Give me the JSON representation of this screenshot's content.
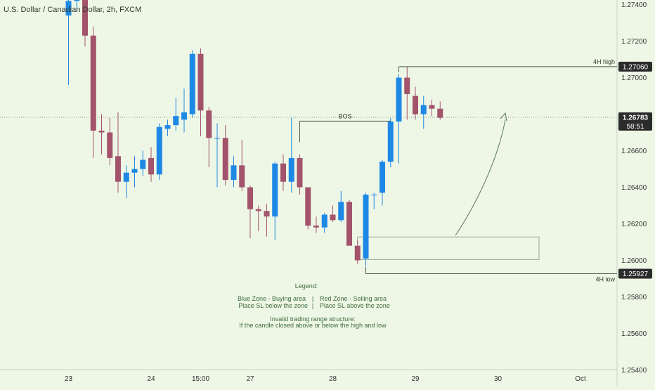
{
  "chart_title": "U.S. Dollar / Canadian Dollar, 2h, FXCM",
  "colors": {
    "background": "#eef7e6",
    "up": "#1e88e5",
    "down": "#a3536b",
    "axis_text": "#333333",
    "line": "#4a5a4a",
    "price_badge": "#2b2b2b",
    "legend_text": "#3e6b3e"
  },
  "chart_data": {
    "type": "candlestick",
    "symbol": "USDCAD",
    "timeframe": "2h",
    "ylim": [
      1.253,
      1.2748
    ],
    "y_ticks": [
      "1.27400",
      "1.27200",
      "1.27000",
      "1.26600",
      "1.26400",
      "1.26200",
      "1.26000",
      "1.25800",
      "1.25600",
      "1.25400"
    ],
    "x_ticks": [
      {
        "label": "23",
        "bar": 0
      },
      {
        "label": "24",
        "bar": 10
      },
      {
        "label": "15:00",
        "bar": 16
      },
      {
        "label": "27",
        "bar": 22
      },
      {
        "label": "28",
        "bar": 32
      },
      {
        "label": "29",
        "bar": 42
      },
      {
        "label": "30",
        "bar": 52
      },
      {
        "label": "Oct",
        "bar": 62
      }
    ],
    "candles": [
      {
        "o": 1.2734,
        "h": 1.2745,
        "l": 1.2696,
        "c": 1.2742
      },
      {
        "o": 1.2742,
        "h": 1.275,
        "l": 1.2736,
        "c": 1.2744
      },
      {
        "o": 1.2748,
        "h": 1.275,
        "l": 1.2717,
        "c": 1.2723
      },
      {
        "o": 1.2723,
        "h": 1.2728,
        "l": 1.2656,
        "c": 1.2671
      },
      {
        "o": 1.2671,
        "h": 1.268,
        "l": 1.2658,
        "c": 1.267
      },
      {
        "o": 1.267,
        "h": 1.2678,
        "l": 1.2652,
        "c": 1.2656
      },
      {
        "o": 1.2657,
        "h": 1.2681,
        "l": 1.2637,
        "c": 1.2643
      },
      {
        "o": 1.2643,
        "h": 1.2652,
        "l": 1.2634,
        "c": 1.2648
      },
      {
        "o": 1.2648,
        "h": 1.2657,
        "l": 1.264,
        "c": 1.265
      },
      {
        "o": 1.265,
        "h": 1.266,
        "l": 1.2646,
        "c": 1.2655
      },
      {
        "o": 1.2656,
        "h": 1.2662,
        "l": 1.2643,
        "c": 1.2647
      },
      {
        "o": 1.2647,
        "h": 1.2675,
        "l": 1.2644,
        "c": 1.2673
      },
      {
        "o": 1.2672,
        "h": 1.2677,
        "l": 1.2668,
        "c": 1.2674
      },
      {
        "o": 1.2674,
        "h": 1.2689,
        "l": 1.2671,
        "c": 1.2679
      },
      {
        "o": 1.2677,
        "h": 1.2694,
        "l": 1.267,
        "c": 1.2681
      },
      {
        "o": 1.268,
        "h": 1.2715,
        "l": 1.2678,
        "c": 1.2713
      },
      {
        "o": 1.2713,
        "h": 1.2716,
        "l": 1.2668,
        "c": 1.2682
      },
      {
        "o": 1.2682,
        "h": 1.2684,
        "l": 1.2651,
        "c": 1.2667
      },
      {
        "o": 1.2667,
        "h": 1.2675,
        "l": 1.264,
        "c": 1.2667
      },
      {
        "o": 1.2667,
        "h": 1.2674,
        "l": 1.2641,
        "c": 1.2644
      },
      {
        "o": 1.2644,
        "h": 1.2657,
        "l": 1.264,
        "c": 1.2652
      },
      {
        "o": 1.2652,
        "h": 1.2666,
        "l": 1.2638,
        "c": 1.264
      },
      {
        "o": 1.264,
        "h": 1.2641,
        "l": 1.2612,
        "c": 1.2628
      },
      {
        "o": 1.2628,
        "h": 1.263,
        "l": 1.2616,
        "c": 1.2627
      },
      {
        "o": 1.2627,
        "h": 1.2631,
        "l": 1.2613,
        "c": 1.2624
      },
      {
        "o": 1.2624,
        "h": 1.2654,
        "l": 1.2611,
        "c": 1.2653
      },
      {
        "o": 1.2653,
        "h": 1.2658,
        "l": 1.2638,
        "c": 1.2643
      },
      {
        "o": 1.2643,
        "h": 1.2678,
        "l": 1.2637,
        "c": 1.2656
      },
      {
        "o": 1.2656,
        "h": 1.2658,
        "l": 1.2636,
        "c": 1.264
      },
      {
        "o": 1.264,
        "h": 1.264,
        "l": 1.2617,
        "c": 1.2619
      },
      {
        "o": 1.2619,
        "h": 1.2624,
        "l": 1.2615,
        "c": 1.2618
      },
      {
        "o": 1.2618,
        "h": 1.2626,
        "l": 1.2615,
        "c": 1.2625
      },
      {
        "o": 1.2625,
        "h": 1.263,
        "l": 1.2621,
        "c": 1.2622
      },
      {
        "o": 1.2622,
        "h": 1.2638,
        "l": 1.2621,
        "c": 1.2632
      },
      {
        "o": 1.2632,
        "h": 1.2633,
        "l": 1.261,
        "c": 1.2608
      },
      {
        "o": 1.2608,
        "h": 1.2611,
        "l": 1.2598,
        "c": 1.26
      },
      {
        "o": 1.2601,
        "h": 1.2637,
        "l": 1.2597,
        "c": 1.2636
      },
      {
        "o": 1.2636,
        "h": 1.2637,
        "l": 1.2628,
        "c": 1.2636
      },
      {
        "o": 1.2637,
        "h": 1.2655,
        "l": 1.263,
        "c": 1.2654
      },
      {
        "o": 1.2654,
        "h": 1.2678,
        "l": 1.2651,
        "c": 1.2676
      },
      {
        "o": 1.2676,
        "h": 1.2702,
        "l": 1.2653,
        "c": 1.27
      },
      {
        "o": 1.27,
        "h": 1.2706,
        "l": 1.2677,
        "c": 1.2691
      },
      {
        "o": 1.269,
        "h": 1.2695,
        "l": 1.2677,
        "c": 1.268
      },
      {
        "o": 1.268,
        "h": 1.269,
        "l": 1.2672,
        "c": 1.2685
      },
      {
        "o": 1.2685,
        "h": 1.2688,
        "l": 1.2679,
        "c": 1.2683
      },
      {
        "o": 1.2683,
        "h": 1.2687,
        "l": 1.2677,
        "c": 1.2678
      }
    ],
    "annotations": {
      "high_line": {
        "price": 1.2706,
        "label": "4H high",
        "badge": "1.27060"
      },
      "low_line": {
        "price": 1.25927,
        "label": "4H low",
        "badge": "1.25927"
      },
      "current_price": {
        "price": 1.26783,
        "badge": "1.26783",
        "countdown": "58:51"
      },
      "bos": {
        "label": "BOS",
        "price": 1.26762
      },
      "zone": {
        "price_top": 1.26128,
        "price_bottom": 1.26004
      }
    }
  },
  "legend": {
    "title": "Legend:",
    "blue_zone": "Blue Zone - Buying area",
    "red_zone": "Red Zone - Selling area",
    "divider": "|",
    "blue_sl": "Place SL below the zone",
    "red_sl": "Place SL above the zone",
    "invalid_title": "Invalid trading range structure:",
    "invalid_desc": "If the candle closed above or below the high and low"
  }
}
